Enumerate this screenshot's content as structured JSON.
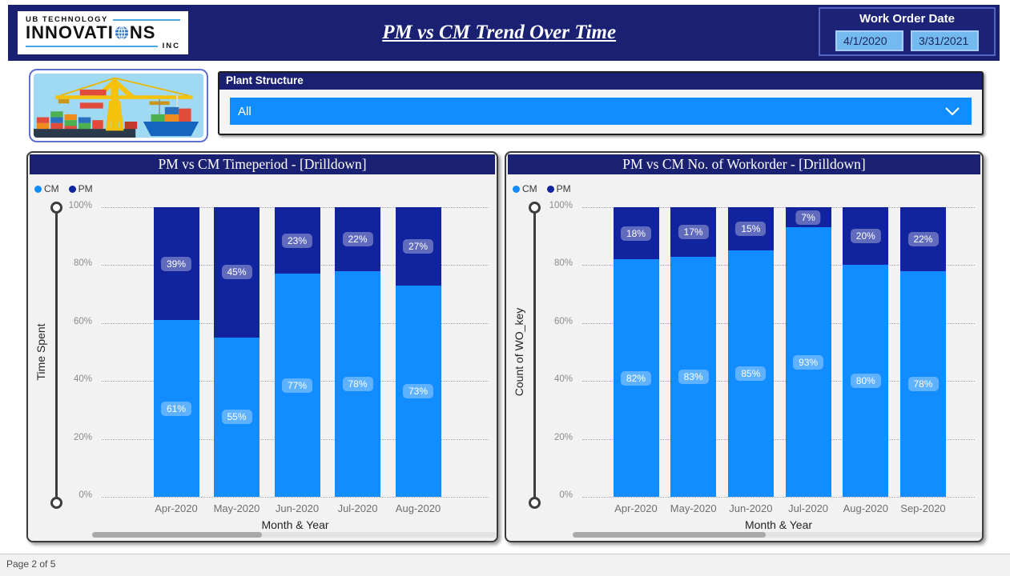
{
  "header": {
    "logo": {
      "line1": "UB TECHNOLOGY",
      "line2_pre": "INNOVATI",
      "line2_post": "NS",
      "line3": "INC"
    },
    "title": "PM vs CM Trend Over Time",
    "work_order_date": {
      "label": "Work Order Date",
      "start_date": "4/1/2020",
      "end_date": "3/31/2021"
    }
  },
  "filters": {
    "plant_structure": {
      "label": "Plant Structure",
      "selected_value": "All"
    }
  },
  "chart_data": [
    {
      "type": "bar",
      "stacked": true,
      "title": "PM vs CM Timeperiod - [Drilldown]",
      "xlabel": "Month & Year",
      "ylabel": "Time Spent",
      "categories": [
        "Apr-2020",
        "May-2020",
        "Jun-2020",
        "Jul-2020",
        "Aug-2020"
      ],
      "series": [
        {
          "name": "CM",
          "color": "#118DFF",
          "values": [
            61,
            55,
            77,
            78,
            73
          ]
        },
        {
          "name": "PM",
          "color": "#12239E",
          "values": [
            39,
            45,
            23,
            22,
            27
          ]
        }
      ],
      "value_format": "percent",
      "ylim": [
        0,
        100
      ],
      "y_ticks": [
        "0%",
        "20%",
        "40%",
        "60%",
        "80%",
        "100%"
      ],
      "grid": "dotted",
      "legend_position": "top-left"
    },
    {
      "type": "bar",
      "stacked": true,
      "title": "PM vs CM No. of Workorder - [Drilldown]",
      "xlabel": "Month & Year",
      "ylabel": "Count of WO_key",
      "categories": [
        "Apr-2020",
        "May-2020",
        "Jun-2020",
        "Jul-2020",
        "Aug-2020",
        "Sep-2020"
      ],
      "series": [
        {
          "name": "CM",
          "color": "#118DFF",
          "values": [
            82,
            83,
            85,
            93,
            80,
            78
          ]
        },
        {
          "name": "PM",
          "color": "#12239E",
          "values": [
            18,
            17,
            15,
            7,
            20,
            22
          ]
        }
      ],
      "value_format": "percent",
      "ylim": [
        0,
        100
      ],
      "y_ticks": [
        "0%",
        "20%",
        "40%",
        "60%",
        "80%",
        "100%"
      ],
      "grid": "dotted",
      "legend_position": "top-left"
    }
  ],
  "footer": {
    "page_label": "Page 2 of 5"
  },
  "colors": {
    "cm_blue": "#118DFF",
    "pm_navy": "#12239E",
    "banner_navy": "#1A2173",
    "date_box_blue": "#74B9F0",
    "dropdown_blue": "#118DFF"
  }
}
